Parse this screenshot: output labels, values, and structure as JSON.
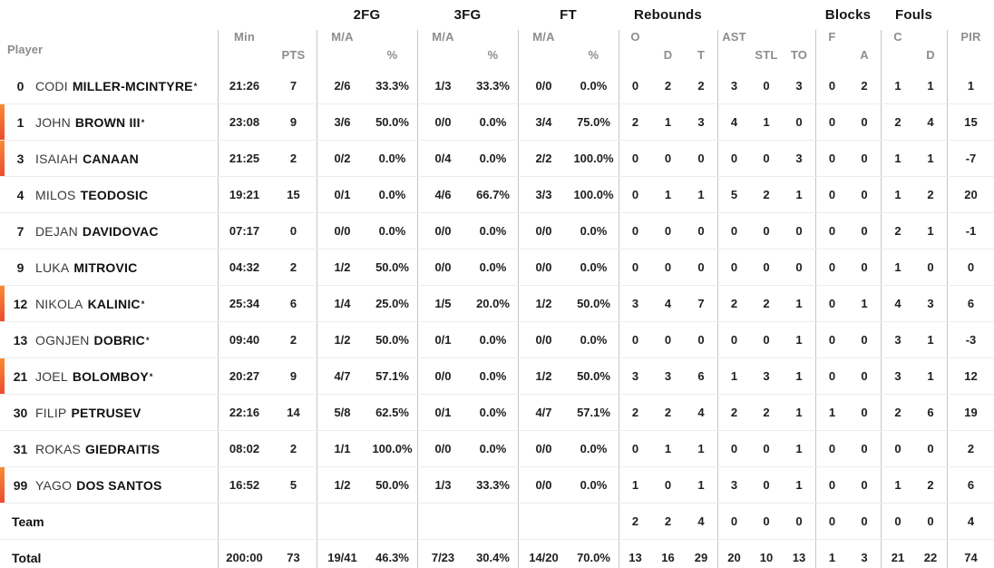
{
  "table": {
    "header": {
      "player_label": "Player",
      "starter_mark": "*",
      "groups": [
        {
          "label": "2FG"
        },
        {
          "label": "3FG"
        },
        {
          "label": "FT"
        },
        {
          "label": "Rebounds"
        },
        {
          "label": "Blocks"
        },
        {
          "label": "Fouls"
        }
      ],
      "columns": [
        "Min",
        "PTS",
        "M/A",
        "%",
        "M/A",
        "%",
        "M/A",
        "%",
        "O",
        "D",
        "T",
        "AST",
        "STL",
        "TO",
        "F",
        "A",
        "C",
        "D",
        "PIR"
      ]
    },
    "rows": [
      {
        "type": "player",
        "number": "0",
        "first": "CODI",
        "last": "MILLER-MCINTYRE",
        "starter": true,
        "oncourt": false,
        "stats": [
          "21:26",
          "7",
          "2/6",
          "33.3%",
          "1/3",
          "33.3%",
          "0/0",
          "0.0%",
          "0",
          "2",
          "2",
          "3",
          "0",
          "3",
          "0",
          "2",
          "1",
          "1",
          "1"
        ]
      },
      {
        "type": "player",
        "number": "1",
        "first": "JOHN",
        "last": "BROWN III",
        "starter": true,
        "oncourt": true,
        "stats": [
          "23:08",
          "9",
          "3/6",
          "50.0%",
          "0/0",
          "0.0%",
          "3/4",
          "75.0%",
          "2",
          "1",
          "3",
          "4",
          "1",
          "0",
          "0",
          "0",
          "2",
          "4",
          "15"
        ]
      },
      {
        "type": "player",
        "number": "3",
        "first": "ISAIAH",
        "last": "CANAAN",
        "starter": false,
        "oncourt": true,
        "stats": [
          "21:25",
          "2",
          "0/2",
          "0.0%",
          "0/4",
          "0.0%",
          "2/2",
          "100.0%",
          "0",
          "0",
          "0",
          "0",
          "0",
          "3",
          "0",
          "0",
          "1",
          "1",
          "-7"
        ]
      },
      {
        "type": "player",
        "number": "4",
        "first": "MILOS",
        "last": "TEODOSIC",
        "starter": false,
        "oncourt": false,
        "stats": [
          "19:21",
          "15",
          "0/1",
          "0.0%",
          "4/6",
          "66.7%",
          "3/3",
          "100.0%",
          "0",
          "1",
          "1",
          "5",
          "2",
          "1",
          "0",
          "0",
          "1",
          "2",
          "20"
        ]
      },
      {
        "type": "player",
        "number": "7",
        "first": "DEJAN",
        "last": "DAVIDOVAC",
        "starter": false,
        "oncourt": false,
        "stats": [
          "07:17",
          "0",
          "0/0",
          "0.0%",
          "0/0",
          "0.0%",
          "0/0",
          "0.0%",
          "0",
          "0",
          "0",
          "0",
          "0",
          "0",
          "0",
          "0",
          "2",
          "1",
          "-1"
        ]
      },
      {
        "type": "player",
        "number": "9",
        "first": "LUKA",
        "last": "MITROVIC",
        "starter": false,
        "oncourt": false,
        "stats": [
          "04:32",
          "2",
          "1/2",
          "50.0%",
          "0/0",
          "0.0%",
          "0/0",
          "0.0%",
          "0",
          "0",
          "0",
          "0",
          "0",
          "0",
          "0",
          "0",
          "1",
          "0",
          "0"
        ]
      },
      {
        "type": "player",
        "number": "12",
        "first": "NIKOLA",
        "last": "KALINIC",
        "starter": true,
        "oncourt": true,
        "stats": [
          "25:34",
          "6",
          "1/4",
          "25.0%",
          "1/5",
          "20.0%",
          "1/2",
          "50.0%",
          "3",
          "4",
          "7",
          "2",
          "2",
          "1",
          "0",
          "1",
          "4",
          "3",
          "6"
        ]
      },
      {
        "type": "player",
        "number": "13",
        "first": "OGNJEN",
        "last": "DOBRIC",
        "starter": true,
        "oncourt": false,
        "stats": [
          "09:40",
          "2",
          "1/2",
          "50.0%",
          "0/1",
          "0.0%",
          "0/0",
          "0.0%",
          "0",
          "0",
          "0",
          "0",
          "0",
          "1",
          "0",
          "0",
          "3",
          "1",
          "-3"
        ]
      },
      {
        "type": "player",
        "number": "21",
        "first": "JOEL",
        "last": "BOLOMBOY",
        "starter": true,
        "oncourt": true,
        "stats": [
          "20:27",
          "9",
          "4/7",
          "57.1%",
          "0/0",
          "0.0%",
          "1/2",
          "50.0%",
          "3",
          "3",
          "6",
          "1",
          "3",
          "1",
          "0",
          "0",
          "3",
          "1",
          "12"
        ]
      },
      {
        "type": "player",
        "number": "30",
        "first": "FILIP",
        "last": "PETRUSEV",
        "starter": false,
        "oncourt": false,
        "stats": [
          "22:16",
          "14",
          "5/8",
          "62.5%",
          "0/1",
          "0.0%",
          "4/7",
          "57.1%",
          "2",
          "2",
          "4",
          "2",
          "2",
          "1",
          "1",
          "0",
          "2",
          "6",
          "19"
        ]
      },
      {
        "type": "player",
        "number": "31",
        "first": "ROKAS",
        "last": "GIEDRAITIS",
        "starter": false,
        "oncourt": false,
        "stats": [
          "08:02",
          "2",
          "1/1",
          "100.0%",
          "0/0",
          "0.0%",
          "0/0",
          "0.0%",
          "0",
          "1",
          "1",
          "0",
          "0",
          "1",
          "0",
          "0",
          "0",
          "0",
          "2"
        ]
      },
      {
        "type": "player",
        "number": "99",
        "first": "YAGO",
        "last": "DOS SANTOS",
        "starter": false,
        "oncourt": true,
        "stats": [
          "16:52",
          "5",
          "1/2",
          "50.0%",
          "1/3",
          "33.3%",
          "0/0",
          "0.0%",
          "1",
          "0",
          "1",
          "3",
          "0",
          "1",
          "0",
          "0",
          "1",
          "2",
          "6"
        ]
      },
      {
        "type": "summary",
        "label": "Team",
        "stats": [
          "",
          "",
          "",
          "",
          "",
          "",
          "",
          "",
          "2",
          "2",
          "4",
          "0",
          "0",
          "0",
          "0",
          "0",
          "0",
          "0",
          "4"
        ]
      },
      {
        "type": "summary",
        "label": "Total",
        "stats": [
          "200:00",
          "73",
          "19/41",
          "46.3%",
          "7/23",
          "30.4%",
          "14/20",
          "70.0%",
          "13",
          "16",
          "29",
          "20",
          "10",
          "13",
          "1",
          "3",
          "21",
          "22",
          "74"
        ]
      }
    ]
  },
  "colors": {
    "oncourt_bar_top": "#f78c33",
    "oncourt_bar_bottom": "#ee4b30",
    "header_text": "#8d8d8d",
    "stat_text": "#202020",
    "vertical_line": "#c6c6c6",
    "row_line": "#ececec"
  }
}
